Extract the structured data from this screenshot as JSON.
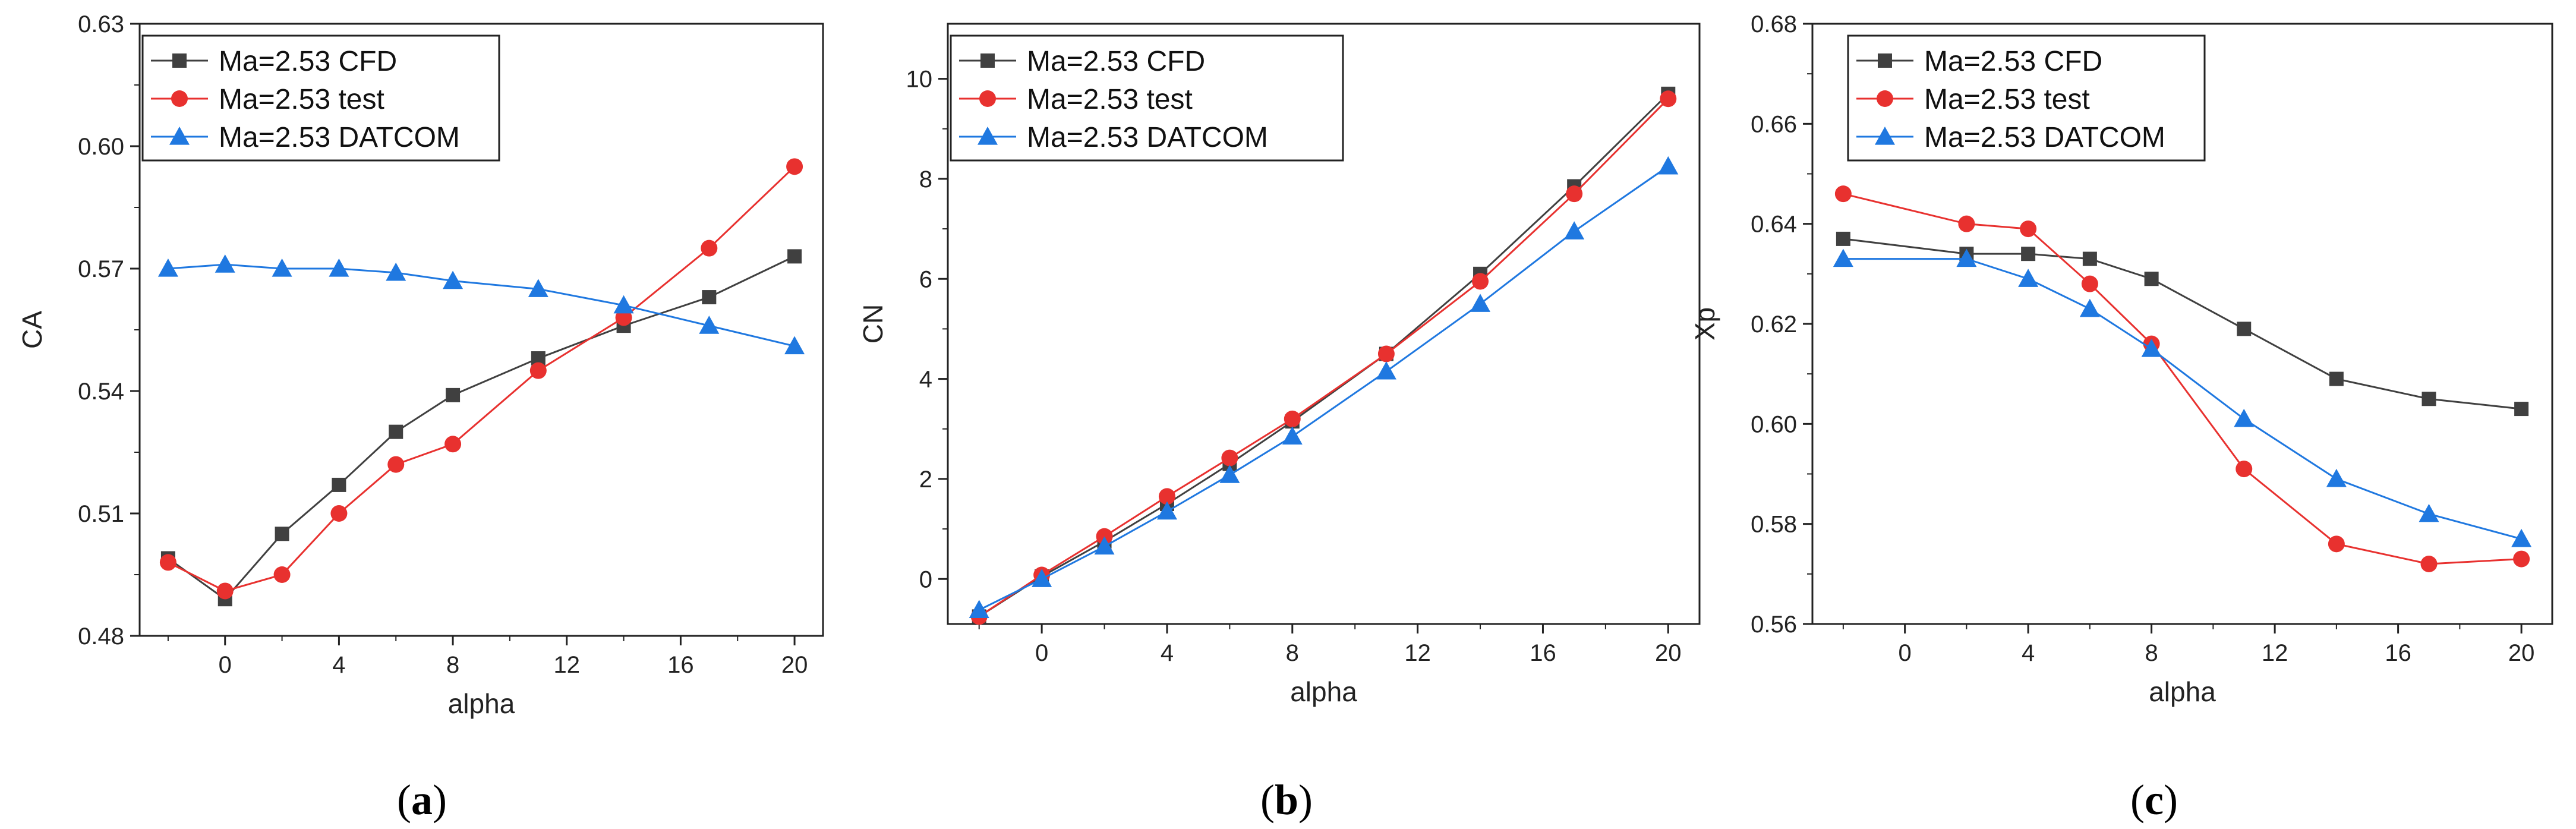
{
  "colors": {
    "cfd": "#404040",
    "test": "#e8312f",
    "datcom": "#1f78e0",
    "axis": "#222222"
  },
  "chart_data": [
    {
      "type": "line",
      "panel_label": "a",
      "xlabel": "alpha",
      "ylabel": "CA",
      "xlim": [
        -3,
        21
      ],
      "ylim": [
        0.48,
        0.63
      ],
      "xticks": [
        0,
        4,
        8,
        12,
        16,
        20
      ],
      "yticks": [
        0.48,
        0.51,
        0.54,
        0.57,
        0.6,
        0.63
      ],
      "ytick_labels": [
        "0.48",
        "0.51",
        "0.54",
        "0.57",
        "0.60",
        "0.63"
      ],
      "legend": "top-left",
      "series": [
        {
          "name": "Ma=2.53 CFD",
          "marker": "square",
          "x": [
            -2,
            0,
            2,
            4,
            6,
            8,
            11,
            14,
            17,
            20
          ],
          "y": [
            0.499,
            0.489,
            0.505,
            0.517,
            0.53,
            0.539,
            0.548,
            0.556,
            0.563,
            0.573
          ]
        },
        {
          "name": "Ma=2.53 test",
          "marker": "circle",
          "x": [
            -2,
            0,
            2,
            4,
            6,
            8,
            11,
            14,
            17,
            20
          ],
          "y": [
            0.498,
            0.491,
            0.495,
            0.51,
            0.522,
            0.527,
            0.545,
            0.558,
            0.575,
            0.595
          ]
        },
        {
          "name": "Ma=2.53 DATCOM",
          "marker": "triangle",
          "x": [
            -2,
            0,
            2,
            4,
            6,
            8,
            11,
            14,
            17,
            20
          ],
          "y": [
            0.57,
            0.571,
            0.57,
            0.57,
            0.569,
            0.567,
            0.565,
            0.561,
            0.556,
            0.551
          ]
        }
      ]
    },
    {
      "type": "line",
      "panel_label": "b",
      "xlabel": "alpha",
      "ylabel": "CN",
      "xlim": [
        -3,
        21
      ],
      "ylim": [
        -0.9,
        11.1
      ],
      "xticks": [
        0,
        4,
        8,
        12,
        16,
        20
      ],
      "yticks": [
        0,
        2,
        4,
        6,
        8,
        10
      ],
      "ytick_labels": [
        "0",
        "2",
        "4",
        "6",
        "8",
        "10"
      ],
      "legend": "top-left",
      "series": [
        {
          "name": "Ma=2.53 CFD",
          "marker": "square",
          "x": [
            -2,
            0,
            2,
            4,
            6,
            8,
            11,
            14,
            17,
            20
          ],
          "y": [
            -0.75,
            0.05,
            0.75,
            1.5,
            2.3,
            3.15,
            4.5,
            6.1,
            7.85,
            9.7
          ]
        },
        {
          "name": "Ma=2.53 test",
          "marker": "circle",
          "x": [
            -2,
            0,
            2,
            4,
            6,
            8,
            11,
            14,
            17,
            20
          ],
          "y": [
            -0.75,
            0.08,
            0.85,
            1.65,
            2.42,
            3.2,
            4.5,
            5.95,
            7.7,
            9.6
          ]
        },
        {
          "name": "Ma=2.53 DATCOM",
          "marker": "triangle",
          "x": [
            -2,
            0,
            2,
            4,
            6,
            8,
            11,
            14,
            17,
            20
          ],
          "y": [
            -0.62,
            0.0,
            0.65,
            1.35,
            2.08,
            2.85,
            4.15,
            5.5,
            6.95,
            8.25
          ]
        }
      ]
    },
    {
      "type": "line",
      "panel_label": "c",
      "xlabel": "alpha",
      "ylabel": "Xp",
      "xlim": [
        -3,
        21
      ],
      "ylim": [
        0.56,
        0.68
      ],
      "xticks": [
        0,
        4,
        8,
        12,
        16,
        20
      ],
      "yticks": [
        0.56,
        0.58,
        0.6,
        0.62,
        0.64,
        0.66,
        0.68
      ],
      "ytick_labels": [
        "0.56",
        "0.58",
        "0.60",
        "0.62",
        "0.64",
        "0.66",
        "0.68"
      ],
      "legend": "top-left",
      "series": [
        {
          "name": "Ma=2.53 CFD",
          "marker": "square",
          "x": [
            -2,
            2,
            4,
            6,
            8,
            11,
            14,
            17,
            20
          ],
          "y": [
            0.637,
            0.634,
            0.634,
            0.633,
            0.629,
            0.619,
            0.609,
            0.605,
            0.603
          ]
        },
        {
          "name": "Ma=2.53 test",
          "marker": "circle",
          "x": [
            -2,
            2,
            4,
            6,
            8,
            11,
            14,
            17,
            20
          ],
          "y": [
            0.646,
            0.64,
            0.639,
            0.628,
            0.616,
            0.591,
            0.576,
            0.572,
            0.573
          ]
        },
        {
          "name": "Ma=2.53 DATCOM",
          "marker": "triangle",
          "x": [
            -2,
            2,
            4,
            6,
            8,
            11,
            14,
            17,
            20
          ],
          "y": [
            0.633,
            0.633,
            0.629,
            0.623,
            0.615,
            0.601,
            0.589,
            0.582,
            0.577
          ]
        }
      ]
    }
  ]
}
